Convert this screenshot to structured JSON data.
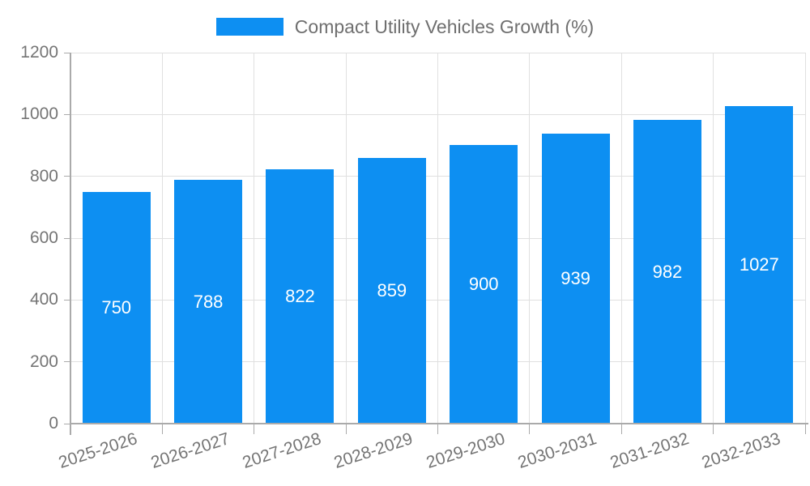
{
  "chart_data": {
    "type": "bar",
    "title": "",
    "legend": "Compact Utility Vehicles Growth (%)",
    "legend_position": "top-center",
    "categories": [
      "2025-2026",
      "2026-2027",
      "2027-2028",
      "2028-2029",
      "2029-2030",
      "2030-2031",
      "2031-2032",
      "2032-2033"
    ],
    "values": [
      750,
      788,
      822,
      859,
      900,
      939,
      982,
      1027
    ],
    "xlabel": "",
    "ylabel": "",
    "ylim": [
      0,
      1200
    ],
    "ytick_step": 200,
    "ytick_labels": [
      "0",
      "200",
      "400",
      "600",
      "800",
      "1000",
      "1200"
    ],
    "grid": true,
    "value_labels_inside": true,
    "x_label_rotation_deg": -18,
    "colors": {
      "bar": "#0d8ff2",
      "grid": "#e0e0e0",
      "axis": "#aaaaaa",
      "tick_label": "#757575",
      "legend_text": "#6f6f6f",
      "value_label": "#ffffff",
      "background": "#ffffff"
    }
  }
}
